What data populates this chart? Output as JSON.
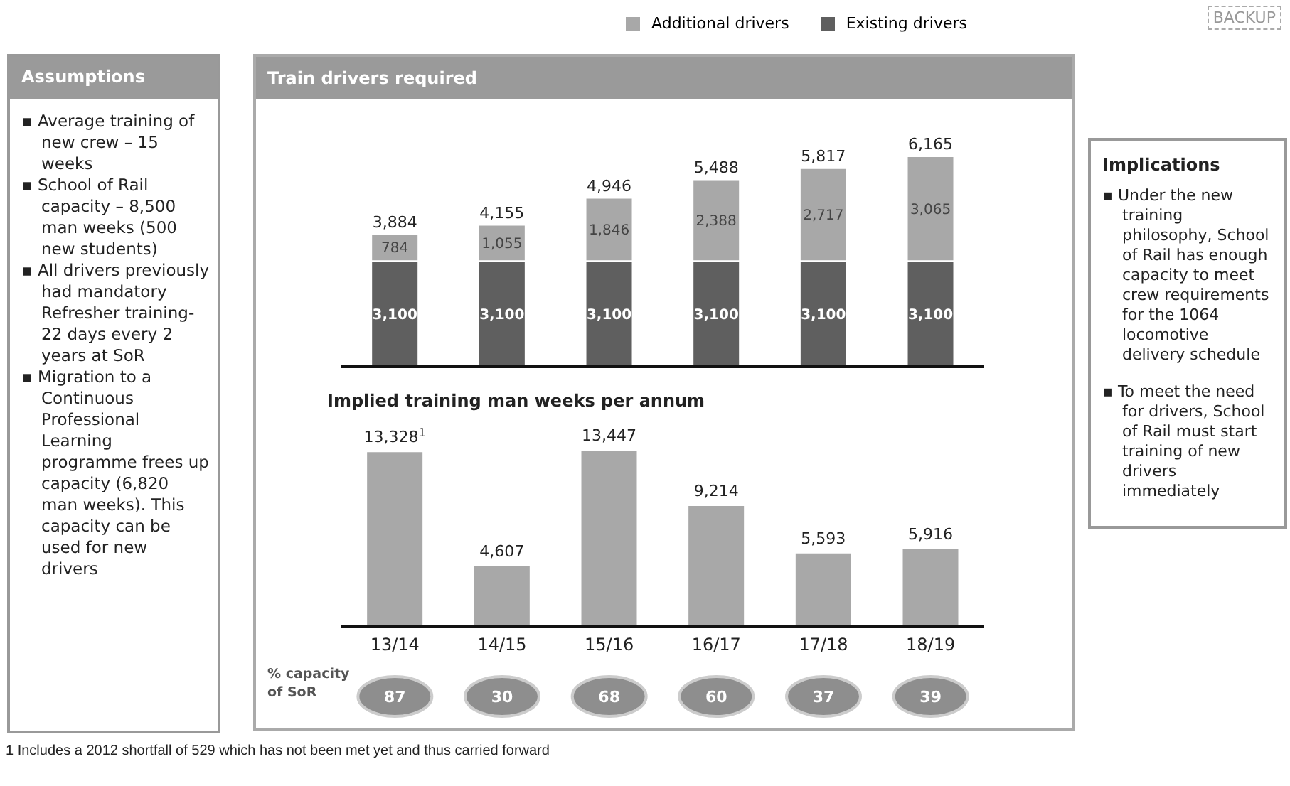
{
  "chart_data": [
    {
      "type": "other",
      "title": "Assumptions",
      "annotations": [
        "▪ Average training of new crew – 15 weeks",
        "▪ School of Rail capacity – 8,500 man weeks (500 new students)",
        "▪ All drivers previously had mandatory Refresher training- 22 days every 2 years at SoR",
        "▪ Migration to a Continuous Professional Learning programme frees up capacity (6,820 man weeks). This capacity can be used for new drivers"
      ]
    },
    {
      "type": "bar",
      "title": "Train drivers required",
      "stacked": true,
      "categories": [
        null,
        null,
        null,
        null,
        null,
        null
      ],
      "series": [
        {
          "name": "Existing drivers",
          "color": "#5f5f5f",
          "values": [
            3100,
            3100,
            3100,
            3100,
            3100,
            3100
          ],
          "value_labels": [
            "3,100",
            "3,100",
            "3,100",
            "3,100",
            "3,100",
            "3,100"
          ]
        },
        {
          "name": "Additional drivers",
          "color": "#a8a8a8",
          "values": [
            784,
            1055,
            1846,
            2388,
            2717,
            3065
          ],
          "value_labels": [
            "784",
            "1,055",
            "1,846",
            "2,388",
            "2,717",
            "3,065"
          ]
        }
      ],
      "totals": [
        "3,884",
        "4,155",
        "4,946",
        "5,488",
        "5,817",
        "6,165"
      ],
      "legend": "top",
      "tick_labels": false
    },
    {
      "type": "bar",
      "title": "Implied training man weeks per annum",
      "categories": [
        "13/14",
        "14/15",
        "15/16",
        "16/17",
        "17/18",
        "18/19"
      ],
      "values": [
        13328,
        4607,
        13447,
        9214,
        5593,
        5916
      ],
      "color": "#a8a8a8",
      "value_labels": [
        "13,328$^{1}$",
        "4,607",
        "13,447",
        "9,214",
        "5,593",
        "5,916"
      ],
      "annotations": [
        "1 Includes a 2012 shortfall of 529 which has not been met yet and thus carried forward"
      ]
    },
    {
      "type": "other",
      "title": "% capacity of SoR",
      "values": [
        87,
        30,
        68,
        60,
        37,
        39
      ],
      "color": "#8e8e8e",
      "data_labels": true
    },
    {
      "type": "other",
      "title": "Implications",
      "annotations": [
        "▪ Under the new training philosophy, School of Rail has enough capacity to meet crew requirements for the 1064 locomotive delivery schedule",
        "▪ To meet the need for drivers, School of Rail must start training of new drivers immediately",
        "BACKUP"
      ]
    }
  ]
}
